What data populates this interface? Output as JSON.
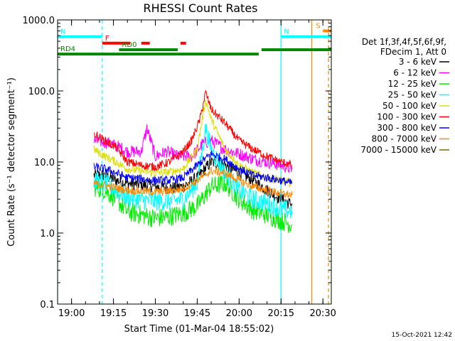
{
  "chart_data": {
    "type": "line",
    "title": "RHESSI Count Rates",
    "xlabel": "Start Time (01-Mar-04 18:55:02)",
    "ylabel": "Count Rate (s⁻¹ detector segment⁻¹)",
    "x_axis": {
      "unit": "UT time",
      "range": [
        "18:55",
        "20:33"
      ],
      "ticks": [
        "19:00",
        "19:15",
        "19:30",
        "19:45",
        "20:00",
        "20:15",
        "20:30"
      ]
    },
    "y_axis": {
      "scale": "log",
      "range": [
        0.1,
        1000.0
      ],
      "ticks": [
        "0.1",
        "1.0",
        "10.0",
        "100.0",
        "1000.0"
      ]
    },
    "legend_header": [
      "Det 1f,3f,4f,5f,6f,9f,",
      "FDecim 1, Att 0"
    ],
    "legend_position": "right",
    "series": [
      {
        "name": "3 - 6 keV",
        "color": "#000000",
        "x": [
          "19:08",
          "19:12",
          "19:16",
          "19:20",
          "19:25",
          "19:30",
          "19:35",
          "19:40",
          "19:45",
          "19:50",
          "19:55",
          "20:00",
          "20:05",
          "20:10",
          "20:15",
          "20:19"
        ],
        "y": [
          6.5,
          6.5,
          5.5,
          5.0,
          4.8,
          4.5,
          4.3,
          4.5,
          6.0,
          10.0,
          9.0,
          7.0,
          5.5,
          4.0,
          3.0,
          2.5
        ]
      },
      {
        "name": "6 - 12 keV",
        "color": "#ff00ff",
        "x": [
          "19:08",
          "19:12",
          "19:16",
          "19:20",
          "19:25",
          "19:27",
          "19:30",
          "19:34",
          "19:38",
          "19:43",
          "19:47",
          "19:50",
          "19:55",
          "20:00",
          "20:05",
          "20:10",
          "20:15",
          "20:19"
        ],
        "y": [
          20,
          19,
          17,
          14,
          14,
          30,
          12,
          14,
          12,
          12,
          18,
          20,
          15,
          13,
          11,
          10,
          9,
          8
        ]
      },
      {
        "name": "12 - 25 keV",
        "color": "#00ee00",
        "x": [
          "19:08",
          "19:12",
          "19:16",
          "19:20",
          "19:25",
          "19:30",
          "19:35",
          "19:40",
          "19:45",
          "19:50",
          "19:55",
          "20:00",
          "20:05",
          "20:10",
          "20:15",
          "20:19"
        ],
        "y": [
          4.5,
          4.0,
          3.0,
          2.0,
          1.8,
          1.6,
          1.7,
          1.9,
          2.4,
          4.5,
          5.0,
          3.0,
          2.1,
          1.8,
          1.5,
          1.3
        ]
      },
      {
        "name": "25 - 50 keV",
        "color": "#00ffff",
        "x": [
          "19:08",
          "19:12",
          "19:16",
          "19:20",
          "19:25",
          "19:30",
          "19:35",
          "19:40",
          "19:45",
          "19:48",
          "19:50",
          "19:55",
          "20:00",
          "20:05",
          "20:10",
          "20:15",
          "20:19"
        ],
        "y": [
          5.5,
          5.0,
          4.0,
          3.2,
          2.9,
          2.8,
          2.8,
          3.0,
          5.0,
          30,
          15,
          7.0,
          4.0,
          3.0,
          2.6,
          2.2,
          2.0
        ]
      },
      {
        "name": "50 - 100 keV",
        "color": "#dddd00",
        "x": [
          "19:08",
          "19:12",
          "19:16",
          "19:20",
          "19:25",
          "19:30",
          "19:35",
          "19:40",
          "19:45",
          "19:48",
          "19:50",
          "19:55",
          "20:00",
          "20:05",
          "20:10",
          "20:15",
          "20:19"
        ],
        "y": [
          15,
          12,
          10,
          8.0,
          7.5,
          7.0,
          7.2,
          8.0,
          15,
          75,
          40,
          15,
          9.0,
          7.0,
          6.0,
          5.5,
          5.0
        ]
      },
      {
        "name": "100 - 300 keV",
        "color": "#ff0000",
        "x": [
          "19:08",
          "19:12",
          "19:16",
          "19:20",
          "19:25",
          "19:30",
          "19:35",
          "19:40",
          "19:43",
          "19:46",
          "19:48",
          "19:50",
          "19:55",
          "20:00",
          "20:05",
          "20:10",
          "20:15",
          "20:19"
        ],
        "y": [
          25,
          20,
          16,
          10,
          9.0,
          8.5,
          10,
          14,
          20,
          40,
          95,
          55,
          35,
          20,
          15,
          12,
          10,
          9.0
        ]
      },
      {
        "name": "300 - 800 keV",
        "color": "#0000ff",
        "x": [
          "19:08",
          "19:12",
          "19:16",
          "19:20",
          "19:25",
          "19:30",
          "19:35",
          "19:40",
          "19:45",
          "19:50",
          "19:55",
          "20:00",
          "20:05",
          "20:10",
          "20:15",
          "20:19"
        ],
        "y": [
          8.5,
          8.0,
          7.0,
          6.0,
          5.8,
          5.5,
          5.5,
          6.0,
          9.0,
          13,
          11,
          8.0,
          6.5,
          6.0,
          5.5,
          5.0
        ]
      },
      {
        "name": "800 - 7000 keV",
        "color": "#ff8800",
        "x": [
          "19:08",
          "19:12",
          "19:16",
          "19:20",
          "19:25",
          "19:30",
          "19:35",
          "19:40",
          "19:45",
          "19:50",
          "19:55",
          "20:00",
          "20:05",
          "20:10",
          "20:15",
          "20:19"
        ],
        "y": [
          5.0,
          4.7,
          4.3,
          4.0,
          3.9,
          3.8,
          3.9,
          4.2,
          5.5,
          7.5,
          7.0,
          5.5,
          4.5,
          4.0,
          3.6,
          3.4
        ]
      },
      {
        "name": "7000 - 15000 keV",
        "color": "#886600",
        "x": [],
        "y": []
      }
    ],
    "annotations": [
      {
        "label": "N",
        "color": "#00ffff",
        "x_range": [
          "18:55",
          "19:11"
        ],
        "level": 580
      },
      {
        "label": "N",
        "color": "#00ffff",
        "x_range": [
          "20:15",
          "20:33"
        ],
        "level": 580
      },
      {
        "label": "F",
        "color": "#ff0000",
        "x_range": [
          "19:11",
          "19:21"
        ],
        "level": 470
      },
      {
        "label": "",
        "color": "#ff0000",
        "x_range": [
          "19:25",
          "19:28"
        ],
        "level": 470
      },
      {
        "label": "",
        "color": "#ff0000",
        "x_range": [
          "19:39",
          "19:41"
        ],
        "level": 470
      },
      {
        "label": "RD0",
        "color": "#008800",
        "x_range": [
          "19:17",
          "19:38"
        ],
        "level": 380
      },
      {
        "label": "",
        "color": "#008800",
        "x_range": [
          "20:08",
          "20:33"
        ],
        "level": 380
      },
      {
        "label": "RD4",
        "color": "#008800",
        "x_range": [
          "18:55",
          "19:38"
        ],
        "level": 330
      },
      {
        "label": "",
        "color": "#008800",
        "x_range": [
          "19:38",
          "20:07"
        ],
        "level": 330
      },
      {
        "label": "S",
        "color": "#ff8800",
        "x_range": [
          "20:30",
          "20:33"
        ],
        "level": 700
      }
    ],
    "vertical_markers": [
      {
        "x": "19:11",
        "color": "#00ffff",
        "style": "dashed"
      },
      {
        "x": "20:15",
        "color": "#00ffff",
        "style": "solid"
      },
      {
        "x": "20:26",
        "color": "#ff8800",
        "style": "solid"
      },
      {
        "x": "20:32",
        "color": "#00ffff",
        "style": "dashed"
      },
      {
        "x": "20:32",
        "color": "#ff8800",
        "style": "dashed"
      },
      {
        "x": "18:55",
        "color": "#00ffff",
        "style": "solid"
      }
    ],
    "timestamp": "15-Oct-2021 12:42"
  }
}
